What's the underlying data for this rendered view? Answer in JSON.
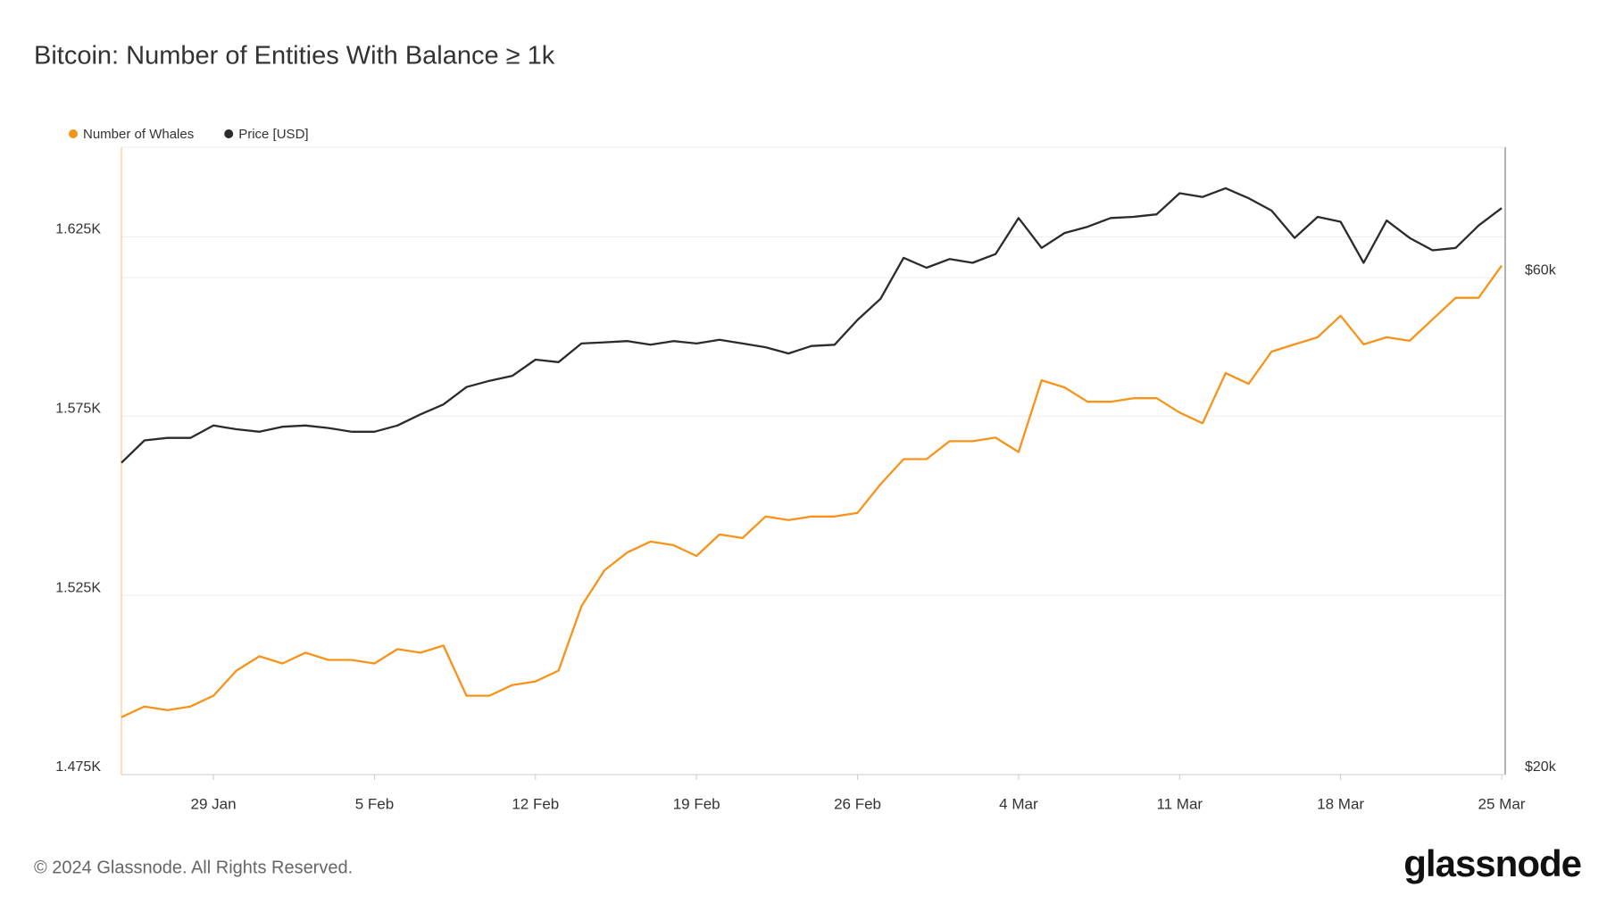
{
  "chart_data": {
    "type": "line",
    "title": "Bitcoin: Number of Entities With Balance ≥ 1k",
    "source": "© 2024 Glassnode. All Rights Reserved.",
    "logo": "glassnode",
    "categories": [
      null,
      null,
      null,
      null,
      "29 Jan",
      null,
      null,
      null,
      null,
      null,
      null,
      "5 Feb",
      null,
      null,
      null,
      null,
      null,
      null,
      "12 Feb",
      null,
      null,
      null,
      null,
      null,
      null,
      "19 Feb",
      null,
      null,
      null,
      null,
      null,
      null,
      "26 Feb",
      null,
      null,
      null,
      null,
      null,
      null,
      "4 Mar",
      null,
      null,
      null,
      null,
      null,
      null,
      "11 Mar",
      null,
      null,
      null,
      null,
      null,
      null,
      "18 Mar",
      null,
      null,
      null,
      null,
      null,
      null,
      "25 Mar"
    ],
    "series": [
      {
        "name": "Number of Whales",
        "color": "#f7931a",
        "axis": "y",
        "values": [
          1491,
          1494,
          1493,
          1494,
          1497,
          1504,
          1508,
          1506,
          1509,
          1507,
          1507,
          1506,
          1510,
          1509,
          1511,
          1497,
          1497,
          1500,
          1501,
          1504,
          1522,
          1532,
          1537,
          1540,
          1539,
          1536,
          1542,
          1541,
          1547,
          1546,
          1547,
          1547,
          1548,
          1556,
          1563,
          1563,
          1568,
          1568,
          1569,
          1565,
          1585,
          1583,
          1579,
          1579,
          1580,
          1580,
          1576,
          1573,
          1587,
          1584,
          1593,
          1595,
          1597,
          1603,
          1595,
          1597,
          1596,
          1602,
          1608,
          1608,
          1617
        ]
      },
      {
        "name": "Price [USD]",
        "color": "#2b2b2b",
        "axis": "y2",
        "values": [
          45100,
          46900,
          47100,
          47100,
          48100,
          47800,
          47600,
          48000,
          48100,
          47900,
          47600,
          47600,
          48100,
          49000,
          49800,
          51200,
          51700,
          52100,
          53400,
          53200,
          54700,
          54800,
          54900,
          54600,
          54900,
          54700,
          55000,
          54700,
          54400,
          53900,
          54500,
          54600,
          56600,
          58300,
          61600,
          60800,
          61500,
          61200,
          61900,
          64800,
          62400,
          63600,
          64100,
          64800,
          64900,
          65100,
          66800,
          66500,
          67200,
          66400,
          65400,
          63200,
          64900,
          64500,
          61200,
          64600,
          63200,
          62200,
          62400,
          64200,
          65600
        ]
      }
    ],
    "ylim": [
      1475,
      1650
    ],
    "yticks": [
      {
        "value": 1475,
        "label": "1.475K"
      },
      {
        "value": 1525,
        "label": "1.525K"
      },
      {
        "value": 1575,
        "label": "1.575K"
      },
      {
        "value": 1625,
        "label": "1.625K"
      }
    ],
    "y2lim": [
      20000,
      70500
    ],
    "y2ticks": [
      {
        "value": 20000,
        "label": "$20k"
      },
      {
        "value": 60000,
        "label": "$60k"
      }
    ],
    "grid": true
  }
}
